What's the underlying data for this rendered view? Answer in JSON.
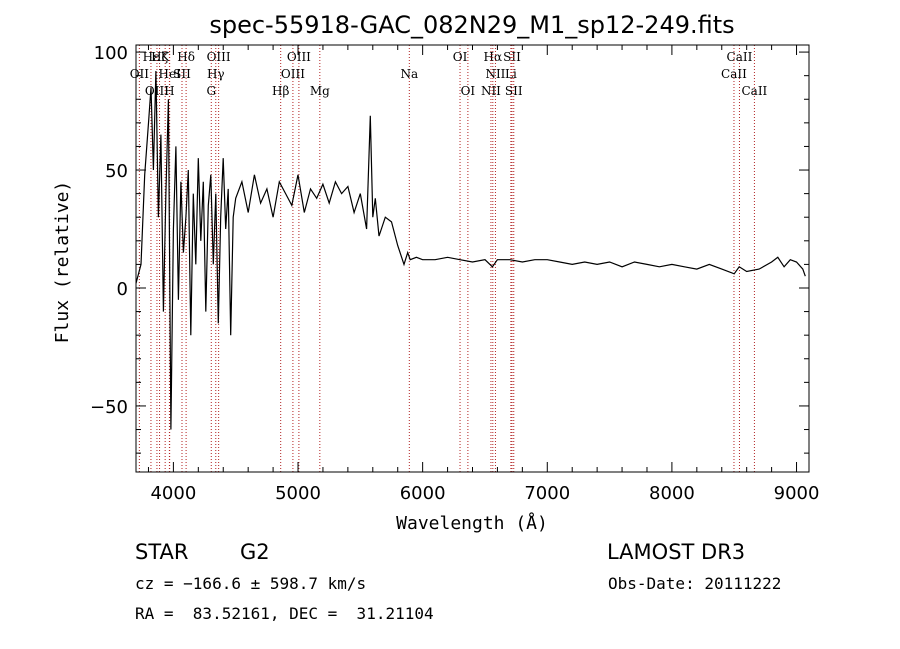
{
  "chart_data": {
    "type": "line",
    "title": "spec-55918-GAC_082N29_M1_sp12-249.fits",
    "xlabel": "Wavelength (Å)",
    "ylabel": "Flux (relative)",
    "xlim": [
      3700,
      9100
    ],
    "ylim": [
      -78,
      103
    ],
    "xticks": [
      4000,
      5000,
      6000,
      7000,
      8000,
      9000
    ],
    "xtick_labels": [
      "4000",
      "5000",
      "6000",
      "7000",
      "8000",
      "9000"
    ],
    "yticks": [
      100,
      50,
      0,
      -50
    ],
    "ytick_labels": [
      "100",
      "50",
      "0",
      "−50"
    ],
    "lines": [
      {
        "label": "Hε",
        "wl": 3820,
        "row": 0
      },
      {
        "label": "Hζ",
        "wl": 3889,
        "row": 0
      },
      {
        "label": "K",
        "wl": 3934,
        "row": 0
      },
      {
        "label": "Hδ",
        "wl": 4102,
        "row": 0
      },
      {
        "label": "OIII",
        "wl": 4363,
        "row": 0
      },
      {
        "label": "OIII",
        "wl": 5007,
        "row": 0
      },
      {
        "label": "OI",
        "wl": 6300,
        "row": 0
      },
      {
        "label": "Hα",
        "wl": 6563,
        "row": 0
      },
      {
        "label": "SII",
        "wl": 6717,
        "row": 0
      },
      {
        "label": "CaII",
        "wl": 8542,
        "row": 0
      },
      {
        "label": "OII",
        "wl": 3727,
        "row": 1
      },
      {
        "label": "HeI",
        "wl": 3970,
        "row": 1
      },
      {
        "label": "SII",
        "wl": 4069,
        "row": 1
      },
      {
        "label": "Hγ",
        "wl": 4340,
        "row": 1
      },
      {
        "label": "OIII",
        "wl": 4959,
        "row": 1
      },
      {
        "label": "Na",
        "wl": 5893,
        "row": 1
      },
      {
        "label": "NII",
        "wl": 6584,
        "row": 1
      },
      {
        "label": "Li",
        "wl": 6708,
        "row": 1
      },
      {
        "label": "CaII",
        "wl": 8498,
        "row": 1
      },
      {
        "label": "OIII",
        "wl": 3868,
        "row": 2
      },
      {
        "label": "H",
        "wl": 3968,
        "row": 2
      },
      {
        "label": "G",
        "wl": 4304,
        "row": 2
      },
      {
        "label": "Hβ",
        "wl": 4861,
        "row": 2
      },
      {
        "label": "Mg",
        "wl": 5175,
        "row": 2
      },
      {
        "label": "OI",
        "wl": 6363,
        "row": 2
      },
      {
        "label": "NII",
        "wl": 6548,
        "row": 2
      },
      {
        "label": "SII",
        "wl": 6731,
        "row": 2
      },
      {
        "label": "CaII",
        "wl": 8662,
        "row": 2
      }
    ],
    "series": [
      {
        "name": "flux",
        "x": [
          3700,
          3740,
          3770,
          3800,
          3820,
          3840,
          3860,
          3880,
          3900,
          3920,
          3940,
          3960,
          3980,
          4000,
          4020,
          4040,
          4060,
          4080,
          4100,
          4120,
          4140,
          4160,
          4180,
          4200,
          4220,
          4240,
          4260,
          4280,
          4300,
          4320,
          4340,
          4360,
          4380,
          4400,
          4420,
          4440,
          4460,
          4480,
          4500,
          4550,
          4600,
          4650,
          4700,
          4750,
          4800,
          4850,
          4900,
          4950,
          5000,
          5050,
          5100,
          5150,
          5200,
          5250,
          5300,
          5350,
          5400,
          5450,
          5500,
          5550,
          5580,
          5600,
          5620,
          5650,
          5700,
          5750,
          5800,
          5850,
          5880,
          5900,
          5950,
          6000,
          6100,
          6200,
          6300,
          6400,
          6500,
          6560,
          6600,
          6700,
          6800,
          6900,
          7000,
          7100,
          7200,
          7300,
          7400,
          7500,
          7600,
          7700,
          7800,
          7900,
          8000,
          8100,
          8200,
          8300,
          8400,
          8500,
          8540,
          8600,
          8700,
          8800,
          8850,
          8900,
          8950,
          9000,
          9050,
          9070
        ],
        "y": [
          2,
          10,
          48,
          70,
          85,
          50,
          92,
          30,
          65,
          -10,
          40,
          80,
          -60,
          25,
          60,
          -5,
          45,
          15,
          30,
          50,
          -20,
          40,
          10,
          55,
          20,
          45,
          -10,
          35,
          48,
          10,
          40,
          -15,
          30,
          55,
          25,
          42,
          -20,
          30,
          38,
          45,
          32,
          48,
          36,
          42,
          30,
          45,
          40,
          35,
          48,
          32,
          42,
          38,
          44,
          36,
          45,
          40,
          43,
          32,
          40,
          25,
          73,
          30,
          38,
          22,
          30,
          28,
          18,
          10,
          15,
          12,
          13,
          12,
          12,
          13,
          12,
          11,
          12,
          9,
          12,
          12,
          11,
          12,
          12,
          11,
          10,
          11,
          10,
          11,
          9,
          11,
          10,
          9,
          10,
          9,
          8,
          10,
          8,
          6,
          9,
          7,
          8,
          11,
          13,
          9,
          12,
          11,
          8,
          5
        ]
      }
    ]
  },
  "footer": {
    "object_class": "STAR",
    "subclass": "G2",
    "survey": "LAMOST DR3",
    "cz": "cz = −166.6 ± 598.7 km/s",
    "obs_date": "Obs-Date: 20111222",
    "coords": "RA =  83.52161, DEC =  31.21104"
  }
}
